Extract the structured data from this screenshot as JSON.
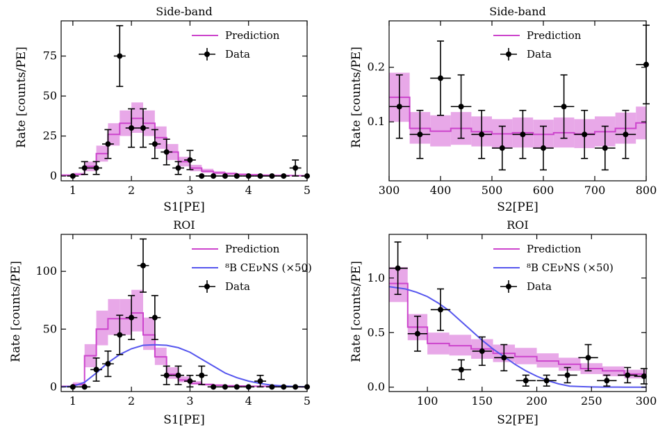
{
  "colors": {
    "prediction": "#cc44cc",
    "band": "#e8a8e8",
    "cevns": "#5555ee",
    "data": "#000000"
  },
  "chart_data": [
    {
      "type": "histogram",
      "title": "Side-band",
      "xlabel": "S1[PE]",
      "ylabel": "Rate [counts/PE]",
      "xlim": [
        0.8,
        5.0
      ],
      "ylim": [
        -3,
        97
      ],
      "xticks": [
        1,
        2,
        3,
        4,
        5
      ],
      "yticks": [
        0,
        25,
        50,
        75
      ],
      "legend": [
        "Prediction",
        "Data"
      ],
      "legend_position": "top-right",
      "bin_edges": [
        0.8,
        1.0,
        1.2,
        1.4,
        1.6,
        1.8,
        2.0,
        2.2,
        2.4,
        2.6,
        2.8,
        3.0,
        3.2,
        3.4,
        3.6,
        3.8,
        4.0,
        4.2,
        4.4,
        4.6,
        4.8,
        5.0
      ],
      "prediction": [
        0.5,
        1,
        6,
        14,
        26,
        33,
        36,
        33,
        24,
        15,
        9,
        5,
        3,
        2,
        1.5,
        1,
        0.8,
        0.5,
        0.4,
        0.3,
        0.2
      ],
      "band_low": [
        0,
        0.5,
        3,
        9,
        19,
        25,
        27,
        25,
        17,
        10,
        6,
        3,
        2,
        1,
        0.7,
        0.5,
        0.3,
        0.2,
        0.1,
        0.1,
        0
      ],
      "band_high": [
        1,
        2,
        9,
        19,
        33,
        41,
        46,
        41,
        31,
        20,
        12,
        7,
        4.5,
        3,
        2.3,
        1.6,
        1.2,
        0.9,
        0.7,
        0.5,
        0.4
      ],
      "data": {
        "x": [
          1.0,
          1.2,
          1.4,
          1.6,
          1.8,
          2.0,
          2.2,
          2.4,
          2.6,
          2.8,
          3.0,
          3.2,
          3.4,
          3.6,
          3.8,
          4.0,
          4.2,
          4.4,
          4.6,
          4.8,
          5.0
        ],
        "y": [
          0,
          5,
          5,
          20,
          75,
          30,
          30,
          20,
          15,
          5,
          10,
          0,
          0,
          0,
          0,
          0,
          0,
          0,
          0,
          5,
          0
        ],
        "yerr": [
          0,
          4,
          4,
          9,
          19,
          12,
          12,
          9,
          8,
          4,
          6,
          0,
          0,
          0,
          0,
          0,
          0,
          0,
          0,
          5,
          0
        ],
        "xerr": 0.1
      }
    },
    {
      "type": "histogram",
      "title": "Side-band",
      "xlabel": "S2[PE]",
      "ylabel": "Rate [counts/PE]",
      "xlim": [
        300,
        800
      ],
      "ylim": [
        -0.008,
        0.285
      ],
      "xticks": [
        300,
        400,
        500,
        600,
        700,
        800
      ],
      "yticks": [
        0.1,
        0.2
      ],
      "legend": [
        "Prediction",
        "Data"
      ],
      "legend_position": "top-right",
      "bin_edges": [
        300,
        340,
        380,
        420,
        460,
        500,
        540,
        580,
        620,
        660,
        700,
        740,
        780,
        800
      ],
      "prediction": [
        0.145,
        0.088,
        0.083,
        0.088,
        0.082,
        0.078,
        0.08,
        0.077,
        0.08,
        0.078,
        0.082,
        0.088,
        0.098
      ],
      "band_low": [
        0.1,
        0.06,
        0.055,
        0.058,
        0.055,
        0.052,
        0.053,
        0.051,
        0.053,
        0.052,
        0.055,
        0.06,
        0.068
      ],
      "band_high": [
        0.19,
        0.118,
        0.112,
        0.118,
        0.11,
        0.105,
        0.108,
        0.104,
        0.108,
        0.105,
        0.11,
        0.117,
        0.128
      ],
      "data": {
        "x": [
          320,
          360,
          400,
          440,
          480,
          520,
          560,
          600,
          640,
          680,
          720,
          760,
          800
        ],
        "y": [
          0.128,
          0.077,
          0.18,
          0.128,
          0.077,
          0.052,
          0.077,
          0.052,
          0.128,
          0.077,
          0.052,
          0.077,
          0.205
        ],
        "yerr": [
          0.058,
          0.044,
          0.068,
          0.058,
          0.044,
          0.04,
          0.044,
          0.04,
          0.058,
          0.044,
          0.04,
          0.044,
          0.072
        ],
        "xerr": 20
      }
    },
    {
      "type": "histogram",
      "title": "ROI",
      "xlabel": "S1[PE]",
      "ylabel": "Rate [counts/PE]",
      "xlim": [
        0.8,
        5.0
      ],
      "ylim": [
        -4,
        132
      ],
      "xticks": [
        1,
        2,
        3,
        4,
        5
      ],
      "yticks": [
        0,
        50,
        100
      ],
      "legend": [
        "Prediction",
        "⁸B CEνNS (×50)",
        "Data"
      ],
      "legend_position": "top-right",
      "bin_edges": [
        0.8,
        1.0,
        1.2,
        1.4,
        1.6,
        1.8,
        2.0,
        2.2,
        2.4,
        2.6,
        2.8,
        3.0,
        3.2,
        3.4,
        3.6,
        3.8,
        4.0,
        4.2,
        4.4,
        4.6,
        4.8,
        5.0
      ],
      "prediction": [
        0.5,
        2,
        27,
        50,
        59,
        59,
        64,
        45,
        26,
        11,
        6,
        3,
        2,
        1.5,
        1,
        0.8,
        0.6,
        0.5,
        0.3,
        0.2,
        0.1
      ],
      "band_low": [
        0,
        1,
        17,
        36,
        45,
        45,
        48,
        32,
        19,
        7,
        4,
        2,
        1.2,
        0.8,
        0.6,
        0.4,
        0.3,
        0.2,
        0.1,
        0.1,
        0
      ],
      "band_high": [
        1,
        4,
        37,
        66,
        76,
        76,
        84,
        60,
        34,
        17,
        9,
        5,
        3,
        2.2,
        1.6,
        1.2,
        0.9,
        0.7,
        0.5,
        0.3,
        0.2
      ],
      "cevns": {
        "x": [
          0.8,
          1.0,
          1.2,
          1.4,
          1.6,
          1.8,
          2.0,
          2.2,
          2.4,
          2.6,
          2.8,
          3.0,
          3.2,
          3.4,
          3.6,
          3.8,
          4.0,
          4.2,
          4.4,
          4.6,
          4.8,
          5.0
        ],
        "y": [
          0,
          0.5,
          4,
          12,
          21,
          28,
          33,
          36,
          36.5,
          36,
          34,
          30,
          24,
          18,
          12,
          8,
          5,
          3,
          1.5,
          0.8,
          0.3,
          0.1
        ]
      },
      "data": {
        "x": [
          1.0,
          1.2,
          1.4,
          1.6,
          1.8,
          2.0,
          2.2,
          2.4,
          2.6,
          2.8,
          3.0,
          3.2,
          3.4,
          3.6,
          3.8,
          4.0,
          4.2,
          4.4,
          4.6,
          4.8,
          5.0
        ],
        "y": [
          0,
          0,
          15,
          20,
          45,
          60,
          105,
          60,
          10,
          10,
          5,
          10,
          0,
          0,
          0,
          0,
          5,
          0,
          0,
          0,
          0
        ],
        "yerr": [
          0,
          0,
          10,
          11,
          17,
          19,
          23,
          19,
          8,
          8,
          5,
          8,
          0,
          0,
          0,
          0,
          5,
          0,
          0,
          0,
          0
        ],
        "xerr": 0.1
      }
    },
    {
      "type": "histogram",
      "title": "ROI",
      "xlabel": "S2[PE]",
      "ylabel": "Rate [counts/PE]",
      "xlim": [
        65,
        300
      ],
      "ylim": [
        -0.04,
        1.4
      ],
      "xticks": [
        100,
        150,
        200,
        250,
        300
      ],
      "yticks": [
        0.0,
        0.5,
        1.0
      ],
      "legend": [
        "Prediction",
        "⁸B CEνNS (×50)",
        "Data"
      ],
      "legend_position": "top-right",
      "bin_edges": [
        65,
        82,
        100,
        120,
        140,
        160,
        180,
        200,
        220,
        240,
        260,
        280,
        300
      ],
      "prediction": [
        0.95,
        0.55,
        0.4,
        0.38,
        0.35,
        0.31,
        0.28,
        0.24,
        0.21,
        0.17,
        0.15,
        0.12
      ],
      "band_low": [
        0.78,
        0.43,
        0.3,
        0.29,
        0.26,
        0.23,
        0.21,
        0.18,
        0.15,
        0.12,
        0.1,
        0.08
      ],
      "band_high": [
        1.1,
        0.67,
        0.5,
        0.48,
        0.44,
        0.39,
        0.36,
        0.31,
        0.27,
        0.22,
        0.19,
        0.16
      ],
      "cevns": {
        "x": [
          65,
          80,
          90,
          100,
          110,
          120,
          130,
          140,
          150,
          160,
          170,
          180,
          190,
          200,
          210,
          220,
          230,
          240,
          250,
          260,
          280,
          300
        ],
        "y": [
          0.92,
          0.9,
          0.87,
          0.83,
          0.77,
          0.7,
          0.61,
          0.52,
          0.43,
          0.35,
          0.28,
          0.21,
          0.15,
          0.1,
          0.06,
          0.03,
          0.01,
          0.005,
          0.002,
          0.001,
          0,
          0
        ]
      },
      "data": {
        "x": [
          73,
          91,
          112,
          131,
          150,
          170,
          190,
          209,
          228,
          247,
          264,
          283,
          298
        ],
        "y": [
          1.09,
          0.49,
          0.71,
          0.16,
          0.33,
          0.27,
          0.06,
          0.06,
          0.11,
          0.27,
          0.06,
          0.11,
          0.1
        ],
        "yerr": [
          0.24,
          0.16,
          0.19,
          0.09,
          0.13,
          0.12,
          0.05,
          0.05,
          0.07,
          0.12,
          0.05,
          0.07,
          0.07
        ],
        "xerr": 9
      }
    }
  ]
}
